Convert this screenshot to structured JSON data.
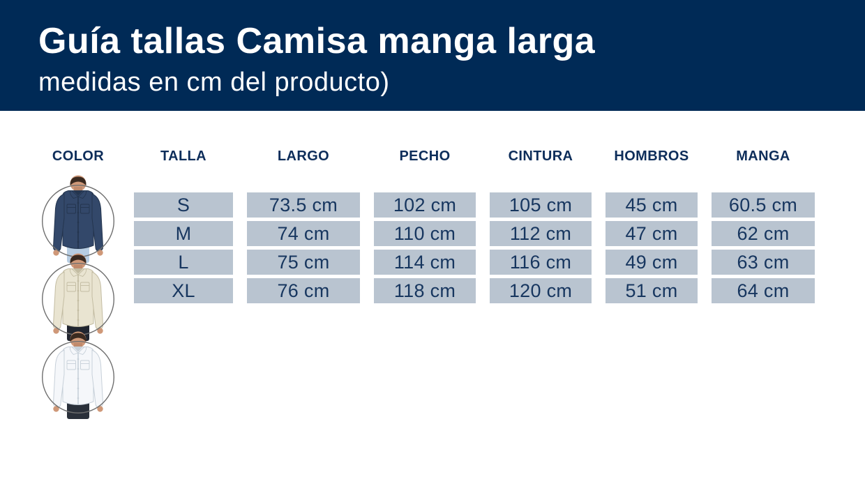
{
  "banner": {
    "title": "Guía tallas Camisa manga larga",
    "subtitle": "medidas en cm del producto)",
    "background": "#002a56",
    "text_color": "#ffffff"
  },
  "table": {
    "columns": [
      "COLOR",
      "TALLA",
      "LARGO",
      "PECHO",
      "CINTURA",
      "HOMBROS",
      "MANGA"
    ],
    "header_text_color": "#0d2d5a",
    "cell_background": "#b9c4d0",
    "cell_text_color": "#17365f",
    "rows": [
      {
        "talla": "S",
        "largo": "73.5 cm",
        "pecho": "102 cm",
        "cintura": "105 cm",
        "hombros": "45 cm",
        "manga": "60.5 cm"
      },
      {
        "talla": "M",
        "largo": "74 cm",
        "pecho": "110 cm",
        "cintura": "112 cm",
        "hombros": "47 cm",
        "manga": "62 cm"
      },
      {
        "talla": "L",
        "largo": "75 cm",
        "pecho": "114 cm",
        "cintura": "116 cm",
        "hombros": "49 cm",
        "manga": "63 cm"
      },
      {
        "talla": "XL",
        "largo": "76 cm",
        "pecho": "118 cm",
        "cintura": "120 cm",
        "hombros": "51 cm",
        "manga": "64 cm"
      }
    ]
  },
  "colors": [
    {
      "name": "navy-shirt",
      "shirt": "#33486a",
      "shade": "#24354e",
      "pants": "#b7cde2",
      "skin": "#cf9878",
      "hair": "#3a2a20",
      "ring": "#6f6f6f"
    },
    {
      "name": "beige-shirt",
      "shirt": "#e9e4d1",
      "shade": "#c3bca2",
      "pants": "#20252f",
      "skin": "#cf9878",
      "hair": "#3a2a20",
      "ring": "#6f6f6f"
    },
    {
      "name": "white-shirt",
      "shirt": "#f5f7fa",
      "shade": "#c7d0d9",
      "pants": "#2a303a",
      "skin": "#cf9878",
      "hair": "#3a2a20",
      "ring": "#6f6f6f"
    }
  ]
}
